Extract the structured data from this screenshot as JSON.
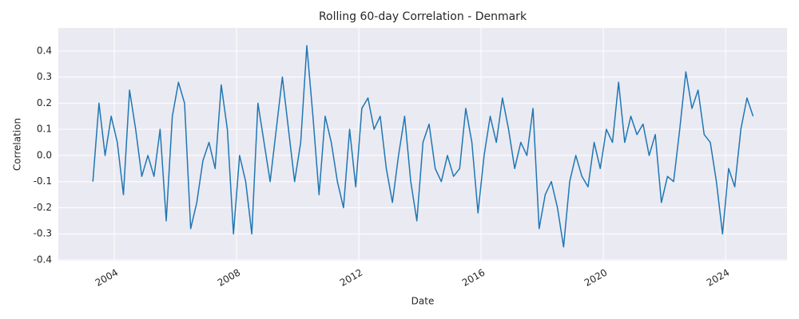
{
  "chart_data": {
    "type": "line",
    "title": "Rolling 60-day Correlation - Denmark",
    "x_label": "Date",
    "y_label": "Correlation",
    "x": [
      2003.3,
      2003.5,
      2003.7,
      2003.9,
      2004.1,
      2004.3,
      2004.5,
      2004.7,
      2004.9,
      2005.1,
      2005.3,
      2005.5,
      2005.7,
      2005.9,
      2006.1,
      2006.3,
      2006.5,
      2006.7,
      2006.9,
      2007.1,
      2007.3,
      2007.5,
      2007.7,
      2007.9,
      2008.1,
      2008.3,
      2008.5,
      2008.7,
      2008.9,
      2009.1,
      2009.3,
      2009.5,
      2009.7,
      2009.9,
      2010.1,
      2010.3,
      2010.5,
      2010.7,
      2010.9,
      2011.1,
      2011.3,
      2011.5,
      2011.7,
      2011.9,
      2012.1,
      2012.3,
      2012.5,
      2012.7,
      2012.9,
      2013.1,
      2013.3,
      2013.5,
      2013.7,
      2013.9,
      2014.1,
      2014.3,
      2014.5,
      2014.7,
      2014.9,
      2015.1,
      2015.3,
      2015.5,
      2015.7,
      2015.9,
      2016.1,
      2016.3,
      2016.5,
      2016.7,
      2016.9,
      2017.1,
      2017.3,
      2017.5,
      2017.7,
      2017.9,
      2018.1,
      2018.3,
      2018.5,
      2018.7,
      2018.9,
      2019.1,
      2019.3,
      2019.5,
      2019.7,
      2019.9,
      2020.1,
      2020.3,
      2020.5,
      2020.7,
      2020.9,
      2021.1,
      2021.3,
      2021.5,
      2021.7,
      2021.9,
      2022.1,
      2022.3,
      2022.5,
      2022.7,
      2022.9,
      2023.1,
      2023.3,
      2023.5,
      2023.7,
      2023.9,
      2024.1,
      2024.3,
      2024.5,
      2024.7,
      2024.9
    ],
    "series": [
      {
        "name": "Correlation",
        "color": "#1f77b4",
        "values": [
          -0.1,
          0.2,
          0.0,
          0.15,
          0.05,
          -0.15,
          0.25,
          0.1,
          -0.08,
          0.0,
          -0.08,
          0.1,
          -0.25,
          0.15,
          0.28,
          0.2,
          -0.28,
          -0.18,
          -0.02,
          0.05,
          -0.05,
          0.27,
          0.1,
          -0.3,
          0.0,
          -0.1,
          -0.3,
          0.2,
          0.05,
          -0.1,
          0.1,
          0.3,
          0.1,
          -0.1,
          0.05,
          0.42,
          0.15,
          -0.15,
          0.15,
          0.05,
          -0.1,
          -0.2,
          0.1,
          -0.12,
          0.18,
          0.22,
          0.1,
          0.15,
          -0.05,
          -0.18,
          0.0,
          0.15,
          -0.1,
          -0.25,
          0.05,
          0.12,
          -0.05,
          -0.1,
          0.0,
          -0.08,
          -0.05,
          0.18,
          0.05,
          -0.22,
          0.0,
          0.15,
          0.05,
          0.22,
          0.1,
          -0.05,
          0.05,
          0.0,
          0.18,
          -0.28,
          -0.15,
          -0.1,
          -0.2,
          -0.35,
          -0.1,
          0.0,
          -0.08,
          -0.12,
          0.05,
          -0.05,
          0.1,
          0.05,
          0.28,
          0.05,
          0.15,
          0.08,
          0.12,
          0.0,
          0.08,
          -0.18,
          -0.08,
          -0.1,
          0.1,
          0.32,
          0.18,
          0.25,
          0.08,
          0.05,
          -0.1,
          -0.3,
          -0.05,
          -0.12,
          0.1,
          0.22,
          0.15
        ]
      }
    ],
    "xlim": [
      2002.17,
      2026.01
    ],
    "xticks": [
      2004,
      2008,
      2012,
      2016,
      2020,
      2024
    ],
    "ylim": [
      -0.403,
      0.488
    ],
    "yticks": [
      -0.4,
      -0.3,
      -0.2,
      -0.1,
      {
        "value": 0,
        "label": "0.0"
      },
      0.1,
      0.2,
      0.3,
      0.4
    ],
    "grid": true
  }
}
